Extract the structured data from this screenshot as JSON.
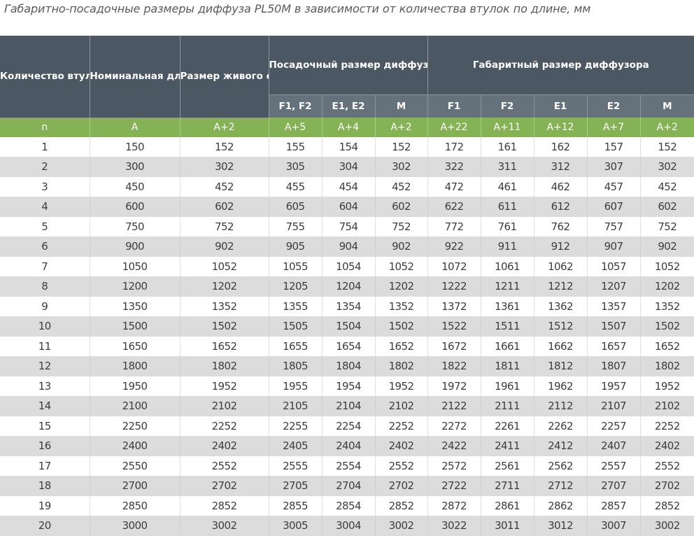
{
  "title": "Габаритно-посадочные размеры диффуза PL50M в зависимости от количества втулок по длине, мм",
  "header": {
    "count": "Количество втулок",
    "nominal": "Номинальная длина",
    "live_section": "Размер живого сечения (щели)",
    "mounting_group": "Посадочный размер диффузора по длине (равен установочному размеру КСД, L)",
    "overall_group": "Габаритный размер диффузора"
  },
  "subheaders": [
    "F1, F2",
    "E1, E2",
    "M",
    "F1",
    "F2",
    "E1",
    "E2",
    "M"
  ],
  "formulas": [
    "n",
    "A",
    "A+2",
    "A+5",
    "A+4",
    "A+2",
    "A+22",
    "A+11",
    "A+12",
    "A+7",
    "A+2"
  ],
  "rows": [
    [
      "1",
      "150",
      "152",
      "155",
      "154",
      "152",
      "172",
      "161",
      "162",
      "157",
      "152"
    ],
    [
      "2",
      "300",
      "302",
      "305",
      "304",
      "302",
      "322",
      "311",
      "312",
      "307",
      "302"
    ],
    [
      "3",
      "450",
      "452",
      "455",
      "454",
      "452",
      "472",
      "461",
      "462",
      "457",
      "452"
    ],
    [
      "4",
      "600",
      "602",
      "605",
      "604",
      "602",
      "622",
      "611",
      "612",
      "607",
      "602"
    ],
    [
      "5",
      "750",
      "752",
      "755",
      "754",
      "752",
      "772",
      "761",
      "762",
      "757",
      "752"
    ],
    [
      "6",
      "900",
      "902",
      "905",
      "904",
      "902",
      "922",
      "911",
      "912",
      "907",
      "902"
    ],
    [
      "7",
      "1050",
      "1052",
      "1055",
      "1054",
      "1052",
      "1072",
      "1061",
      "1062",
      "1057",
      "1052"
    ],
    [
      "8",
      "1200",
      "1202",
      "1205",
      "1204",
      "1202",
      "1222",
      "1211",
      "1212",
      "1207",
      "1202"
    ],
    [
      "9",
      "1350",
      "1352",
      "1355",
      "1354",
      "1352",
      "1372",
      "1361",
      "1362",
      "1357",
      "1352"
    ],
    [
      "10",
      "1500",
      "1502",
      "1505",
      "1504",
      "1502",
      "1522",
      "1511",
      "1512",
      "1507",
      "1502"
    ],
    [
      "11",
      "1650",
      "1652",
      "1655",
      "1654",
      "1652",
      "1672",
      "1661",
      "1662",
      "1657",
      "1652"
    ],
    [
      "12",
      "1800",
      "1802",
      "1805",
      "1804",
      "1802",
      "1822",
      "1811",
      "1812",
      "1807",
      "1802"
    ],
    [
      "13",
      "1950",
      "1952",
      "1955",
      "1954",
      "1952",
      "1972",
      "1961",
      "1962",
      "1957",
      "1952"
    ],
    [
      "14",
      "2100",
      "2102",
      "2105",
      "2104",
      "2102",
      "2122",
      "2111",
      "2112",
      "2107",
      "2102"
    ],
    [
      "15",
      "2250",
      "2252",
      "2255",
      "2254",
      "2252",
      "2272",
      "2261",
      "2262",
      "2257",
      "2252"
    ],
    [
      "16",
      "2400",
      "2402",
      "2405",
      "2404",
      "2402",
      "2422",
      "2411",
      "2412",
      "2407",
      "2402"
    ],
    [
      "17",
      "2550",
      "2552",
      "2555",
      "2554",
      "2552",
      "2572",
      "2561",
      "2562",
      "2557",
      "2552"
    ],
    [
      "18",
      "2700",
      "2702",
      "2705",
      "2704",
      "2702",
      "2722",
      "2711",
      "2712",
      "2707",
      "2702"
    ],
    [
      "19",
      "2850",
      "2852",
      "2855",
      "2854",
      "2852",
      "2872",
      "2861",
      "2862",
      "2857",
      "2852"
    ],
    [
      "20",
      "3000",
      "3002",
      "3005",
      "3004",
      "3002",
      "3022",
      "3011",
      "3012",
      "3007",
      "3002"
    ]
  ],
  "colors": {
    "header": "#4b5762",
    "subheader": "#66727b",
    "formula_row": "#85b254",
    "stripe": "#dcdcdc"
  }
}
